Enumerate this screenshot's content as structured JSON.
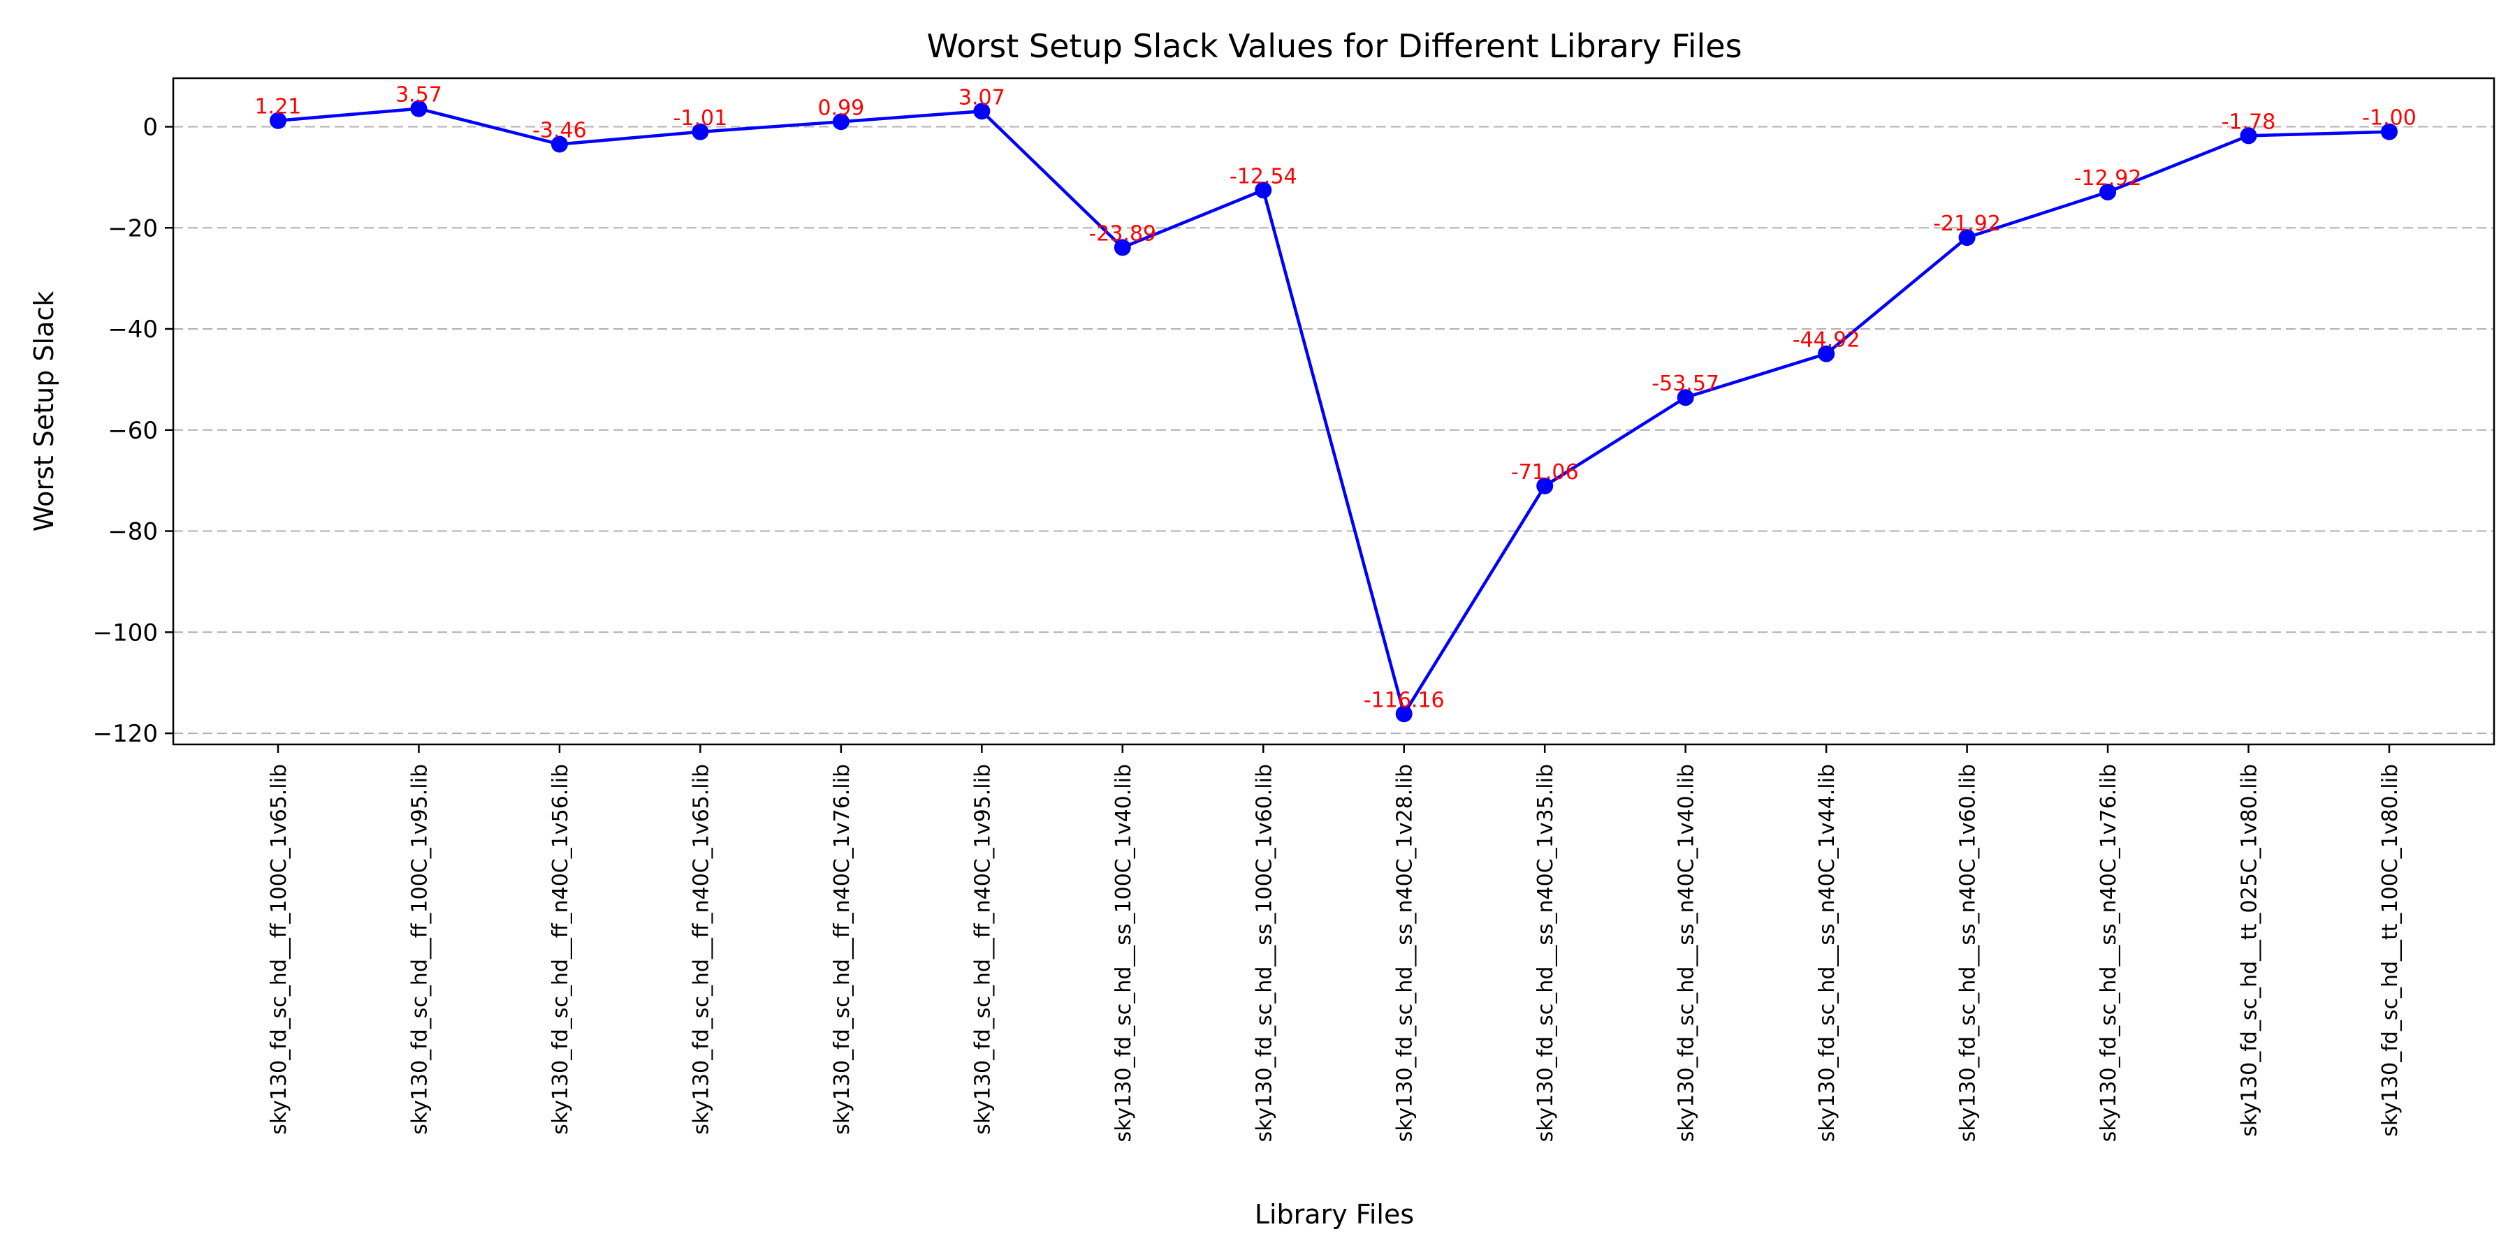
{
  "chart_data": {
    "type": "line",
    "title": "Worst Setup Slack Values for Different Library Files",
    "xlabel": "Library Files",
    "ylabel": "Worst Setup Slack",
    "categories": [
      "sky130_fd_sc_hd__ff_100C_1v65.lib",
      "sky130_fd_sc_hd__ff_100C_1v95.lib",
      "sky130_fd_sc_hd__ff_n40C_1v56.lib",
      "sky130_fd_sc_hd__ff_n40C_1v65.lib",
      "sky130_fd_sc_hd__ff_n40C_1v76.lib",
      "sky130_fd_sc_hd__ff_n40C_1v95.lib",
      "sky130_fd_sc_hd__ss_100C_1v40.lib",
      "sky130_fd_sc_hd__ss_100C_1v60.lib",
      "sky130_fd_sc_hd__ss_n40C_1v28.lib",
      "sky130_fd_sc_hd__ss_n40C_1v35.lib",
      "sky130_fd_sc_hd__ss_n40C_1v40.lib",
      "sky130_fd_sc_hd__ss_n40C_1v44.lib",
      "sky130_fd_sc_hd__ss_n40C_1v60.lib",
      "sky130_fd_sc_hd__ss_n40C_1v76.lib",
      "sky130_fd_sc_hd__tt_025C_1v80.lib",
      "sky130_fd_sc_hd__tt_100C_1v80.lib"
    ],
    "values": [
      1.21,
      3.57,
      -3.46,
      -1.01,
      0.99,
      3.07,
      -23.89,
      -12.54,
      -116.16,
      -71.06,
      -53.57,
      -44.92,
      -21.92,
      -12.92,
      -1.78,
      -1.0
    ],
    "data_labels": [
      "1.21",
      "3.57",
      "-3.46",
      "-1.01",
      "0.99",
      "3.07",
      "-23.89",
      "-12.54",
      "-116.16",
      "-71.06",
      "-53.57",
      "-44.92",
      "-21.92",
      "-12.92",
      "-1.78",
      "-1.00"
    ],
    "ylim": [
      -122.2,
      9.6
    ],
    "y_ticks": [
      0,
      -20,
      -40,
      -60,
      -80,
      -100,
      -120
    ],
    "y_tick_labels": [
      "0",
      "−20",
      "−40",
      "−60",
      "−80",
      "−100",
      "−120"
    ],
    "grid": "horizontal-dashed",
    "legend": "none",
    "colors": {
      "line": "#0000ff",
      "marker": "#0000ff",
      "data_label": "#ff0000",
      "grid": "#b0b0b0",
      "axis": "#000000"
    }
  }
}
